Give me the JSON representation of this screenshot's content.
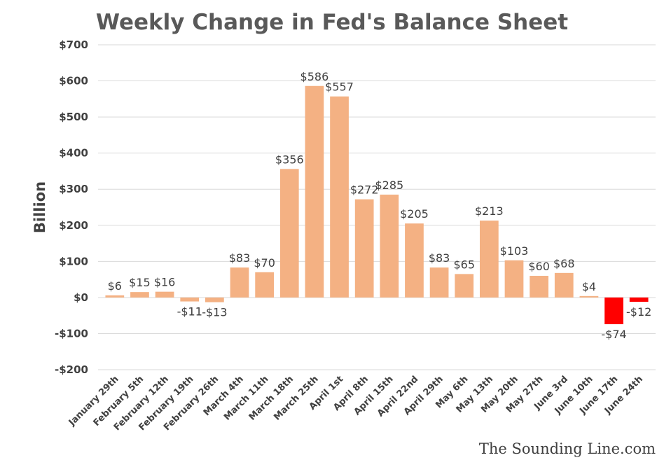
{
  "chart_data": {
    "type": "bar",
    "title": "Weekly Change in Fed's Balance Sheet",
    "ylabel": "Billion",
    "xlabel": "",
    "ylim": [
      -200,
      700
    ],
    "yticks": [
      700,
      600,
      500,
      400,
      300,
      200,
      100,
      0,
      -100,
      -200
    ],
    "ytick_labels": [
      "$700",
      "$600",
      "$500",
      "$400",
      "$300",
      "$200",
      "$100",
      "$0",
      "-$100",
      "-$200"
    ],
    "grid": true,
    "categories": [
      "January 29th",
      "February 5th",
      "February 12th",
      "February 19th",
      "February 26th",
      "March 4th",
      "March 11th",
      "March 18th",
      "March 25th",
      "April 1st",
      "April 8th",
      "April 15th",
      "April 22nd",
      "April 29th",
      "May 6th",
      "May 13th",
      "May 20th",
      "May 27th",
      "June 3rd",
      "June 10th",
      "June 17th",
      "June 24th"
    ],
    "values": [
      6,
      15,
      16,
      -11,
      -13,
      83,
      70,
      356,
      586,
      557,
      272,
      285,
      205,
      83,
      65,
      213,
      103,
      60,
      68,
      4,
      -74,
      -12
    ],
    "data_labels": [
      "$6",
      "$15",
      "$16",
      "-$11",
      "-$13",
      "$83",
      "$70",
      "$356",
      "$586",
      "$557",
      "$272",
      "$285",
      "$205",
      "$83",
      "$65",
      "$213",
      "$103",
      "$60",
      "$68",
      "$4",
      "-$74",
      "-$12"
    ],
    "colors": {
      "default_bar": "#F4B183",
      "highlight_bar": "#FF0000",
      "gridline": "#D9D9D9",
      "text": "#404040"
    },
    "highlight_indices": [
      20,
      21
    ]
  },
  "watermark": "The Sounding Line.com"
}
